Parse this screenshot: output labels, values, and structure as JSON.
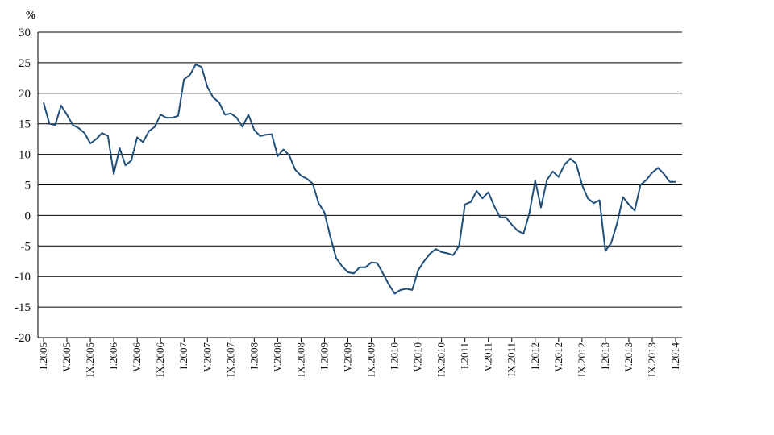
{
  "chart_data": {
    "type": "line",
    "unit_label": "%",
    "title": "",
    "xlabel": "",
    "ylabel": "",
    "ylim": [
      -20,
      30
    ],
    "yticks": [
      30,
      25,
      20,
      15,
      10,
      5,
      0,
      -5,
      -10,
      -15,
      -20
    ],
    "grid": true,
    "legend": "none",
    "x_tick_labels": [
      "I.2005",
      "V.2005",
      "IX.2005",
      "I.2006",
      "V.2006",
      "IX.2006",
      "I.2007",
      "V.2007",
      "IX.2007",
      "I.2008",
      "V.2008",
      "IX.2008",
      "I.2009",
      "V.2009",
      "IX.2009",
      "I.2010",
      "V.2010",
      "IX.2010",
      "I.2011",
      "V.2011",
      "IX.2011",
      "I.2012",
      "V.2012",
      "IX.2012",
      "I.2013",
      "V.2013",
      "IX.2013",
      "I.2014"
    ],
    "x_start": "I.2005",
    "x_frequency": "monthly",
    "series": [
      {
        "color": "#1f4e79",
        "values": [
          18.5,
          15.0,
          14.8,
          18.0,
          16.5,
          14.8,
          14.3,
          13.5,
          11.8,
          12.5,
          13.5,
          13.0,
          6.8,
          11.0,
          8.2,
          9.0,
          12.8,
          12.0,
          13.8,
          14.5,
          16.5,
          16.0,
          16.0,
          16.3,
          22.3,
          23.0,
          24.7,
          24.3,
          21.0,
          19.3,
          18.5,
          16.5,
          16.7,
          16.0,
          14.5,
          16.5,
          14.0,
          13.0,
          13.2,
          13.3,
          9.7,
          10.8,
          9.8,
          7.5,
          6.5,
          6.0,
          5.2,
          2.0,
          0.5,
          -3.5,
          -7.0,
          -8.3,
          -9.3,
          -9.5,
          -8.5,
          -8.5,
          -7.7,
          -7.8,
          -9.5,
          -11.3,
          -12.8,
          -12.2,
          -12.0,
          -12.2,
          -9.0,
          -7.5,
          -6.3,
          -5.5,
          -6.0,
          -6.2,
          -6.5,
          -5.0,
          1.8,
          2.2,
          4.0,
          2.8,
          3.8,
          1.5,
          -0.3,
          -0.3,
          -1.5,
          -2.5,
          -3.0,
          0.3,
          5.7,
          1.3,
          5.8,
          7.2,
          6.3,
          8.3,
          9.3,
          8.5,
          5.0,
          2.8,
          2.0,
          2.5,
          -5.8,
          -4.5,
          -1.3,
          3.0,
          1.8,
          0.8,
          5.0,
          5.8,
          7.0,
          7.8,
          6.8,
          5.5,
          5.5
        ]
      }
    ]
  }
}
